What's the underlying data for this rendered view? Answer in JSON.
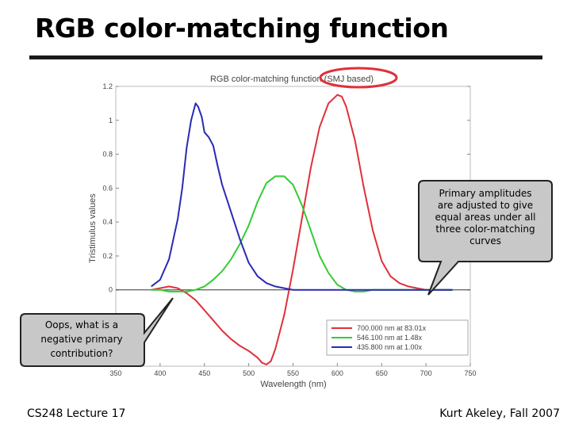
{
  "slide": {
    "title": "RGB color-matching function",
    "footer_left": "CS248 Lecture 17",
    "footer_right": "Kurt Akeley, Fall 2007"
  },
  "callouts": {
    "right": [
      "Primary amplitudes",
      "are adjusted to give",
      "equal areas under all",
      "three color-matching",
      "curves"
    ],
    "left": [
      "Oops, what is a",
      "negative primary",
      "contribution?"
    ]
  },
  "chart_data": {
    "type": "line",
    "title": "RGB color-matching function (SMJ based)",
    "xlabel": "Wavelength (nm)",
    "ylabel": "Tristimulus values",
    "xlim": [
      350,
      750
    ],
    "ylim": [
      -0.45,
      1.2
    ],
    "xticks": [
      350,
      400,
      450,
      500,
      550,
      600,
      650,
      700,
      750
    ],
    "yticks": [
      0,
      0.2,
      0.4,
      0.6,
      0.8,
      1,
      1.2
    ],
    "highlight_color": "#e0303a",
    "legend_placement": "bottom-right",
    "series": [
      {
        "name": "700.000 nm at 83.01x",
        "color": "#e0303a",
        "x": [
          390,
          400,
          410,
          420,
          430,
          440,
          450,
          460,
          470,
          480,
          490,
          500,
          510,
          515,
          520,
          525,
          530,
          540,
          550,
          560,
          570,
          580,
          590,
          600,
          605,
          610,
          620,
          630,
          640,
          650,
          660,
          670,
          680,
          690,
          700,
          710,
          720,
          730
        ],
        "y": [
          0.0,
          0.01,
          0.02,
          0.01,
          -0.02,
          -0.06,
          -0.12,
          -0.18,
          -0.24,
          -0.29,
          -0.33,
          -0.36,
          -0.4,
          -0.43,
          -0.44,
          -0.42,
          -0.35,
          -0.15,
          0.12,
          0.42,
          0.72,
          0.96,
          1.1,
          1.15,
          1.14,
          1.08,
          0.88,
          0.6,
          0.35,
          0.17,
          0.08,
          0.04,
          0.02,
          0.01,
          0.0,
          0.0,
          0.0,
          0.0
        ]
      },
      {
        "name": "546.100 nm at 1.48x",
        "color": "#33cc33",
        "x": [
          390,
          400,
          410,
          420,
          430,
          440,
          450,
          460,
          470,
          480,
          490,
          500,
          510,
          520,
          530,
          540,
          550,
          560,
          570,
          580,
          590,
          600,
          610,
          620,
          630,
          640,
          650,
          660,
          670,
          680,
          690,
          700,
          710,
          720,
          730
        ],
        "y": [
          0.0,
          0.0,
          -0.01,
          -0.01,
          -0.01,
          0.0,
          0.02,
          0.06,
          0.11,
          0.18,
          0.27,
          0.38,
          0.52,
          0.63,
          0.67,
          0.67,
          0.62,
          0.5,
          0.35,
          0.2,
          0.1,
          0.03,
          0.0,
          -0.01,
          -0.01,
          0.0,
          0.0,
          0.0,
          0.0,
          0.0,
          0.0,
          0.0,
          0.0,
          0.0,
          0.0
        ]
      },
      {
        "name": "435.800 nm at 1.00x",
        "color": "#2a2ab4",
        "x": [
          390,
          400,
          410,
          420,
          425,
          430,
          435,
          440,
          443,
          447,
          450,
          455,
          460,
          465,
          470,
          480,
          490,
          500,
          510,
          520,
          530,
          540,
          550,
          560,
          570,
          580,
          600,
          650,
          700,
          730
        ],
        "y": [
          0.02,
          0.06,
          0.18,
          0.42,
          0.6,
          0.84,
          1.0,
          1.1,
          1.08,
          1.02,
          0.93,
          0.9,
          0.85,
          0.73,
          0.62,
          0.46,
          0.3,
          0.16,
          0.08,
          0.04,
          0.02,
          0.01,
          0.0,
          0.0,
          0.0,
          0.0,
          0.0,
          0.0,
          0.0,
          0.0
        ]
      }
    ]
  }
}
